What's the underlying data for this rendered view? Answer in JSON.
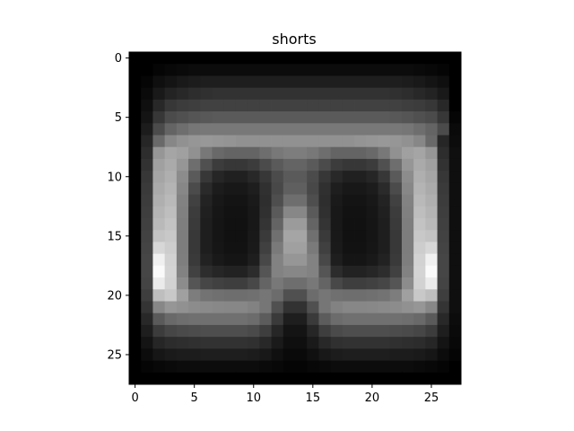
{
  "chart_data": {
    "type": "heatmap",
    "title": "shorts",
    "xlabel": "",
    "ylabel": "",
    "colormap": "gray",
    "grid": false,
    "rows": 28,
    "cols": 28,
    "xlim": [
      -0.5,
      27.5
    ],
    "ylim": [
      27.5,
      -0.5
    ],
    "x_ticks": [
      0,
      5,
      10,
      15,
      20,
      25
    ],
    "y_ticks": [
      0,
      5,
      10,
      15,
      20,
      25
    ],
    "values": [
      [
        0,
        0,
        0,
        0,
        0,
        0,
        0,
        0,
        0,
        0,
        0,
        0,
        0,
        0,
        0,
        0,
        0,
        0,
        0,
        0,
        0,
        0,
        0,
        0,
        0,
        0,
        0,
        0
      ],
      [
        0,
        0,
        5,
        8,
        10,
        12,
        12,
        12,
        12,
        12,
        12,
        12,
        12,
        12,
        12,
        12,
        12,
        12,
        12,
        12,
        12,
        12,
        12,
        12,
        10,
        8,
        5,
        0
      ],
      [
        0,
        5,
        15,
        20,
        25,
        28,
        30,
        30,
        30,
        30,
        30,
        30,
        30,
        30,
        30,
        30,
        30,
        30,
        30,
        30,
        30,
        30,
        30,
        28,
        25,
        20,
        15,
        0
      ],
      [
        0,
        10,
        25,
        35,
        40,
        45,
        48,
        50,
        50,
        50,
        50,
        50,
        50,
        50,
        50,
        50,
        50,
        50,
        50,
        50,
        50,
        50,
        48,
        45,
        40,
        35,
        25,
        0
      ],
      [
        0,
        15,
        40,
        55,
        60,
        62,
        65,
        65,
        65,
        65,
        65,
        65,
        65,
        65,
        65,
        65,
        65,
        65,
        65,
        65,
        65,
        65,
        65,
        62,
        60,
        55,
        40,
        0
      ],
      [
        0,
        20,
        55,
        75,
        80,
        85,
        88,
        90,
        90,
        90,
        90,
        90,
        90,
        90,
        90,
        90,
        90,
        90,
        90,
        90,
        90,
        90,
        88,
        85,
        80,
        75,
        55,
        5
      ],
      [
        0,
        28,
        75,
        100,
        110,
        118,
        120,
        120,
        120,
        120,
        120,
        120,
        120,
        120,
        120,
        120,
        120,
        120,
        120,
        120,
        120,
        120,
        120,
        118,
        110,
        100,
        75,
        10
      ],
      [
        0,
        38,
        105,
        135,
        145,
        150,
        152,
        150,
        148,
        145,
        145,
        145,
        145,
        145,
        145,
        145,
        145,
        145,
        145,
        148,
        150,
        152,
        150,
        145,
        135,
        105,
        38,
        12
      ],
      [
        0,
        45,
        150,
        165,
        160,
        145,
        120,
        105,
        100,
        100,
        100,
        110,
        120,
        125,
        125,
        120,
        110,
        100,
        100,
        100,
        105,
        120,
        145,
        160,
        165,
        150,
        45,
        15
      ],
      [
        0,
        50,
        160,
        170,
        150,
        110,
        80,
        60,
        55,
        55,
        60,
        75,
        90,
        100,
        100,
        90,
        75,
        60,
        55,
        55,
        60,
        80,
        110,
        150,
        170,
        160,
        50,
        15
      ],
      [
        0,
        55,
        165,
        175,
        140,
        90,
        55,
        38,
        32,
        32,
        40,
        55,
        75,
        90,
        90,
        75,
        55,
        40,
        32,
        32,
        38,
        55,
        90,
        140,
        175,
        165,
        55,
        15
      ],
      [
        0,
        58,
        170,
        180,
        135,
        75,
        42,
        28,
        24,
        24,
        30,
        48,
        72,
        95,
        95,
        72,
        48,
        30,
        24,
        24,
        28,
        42,
        75,
        135,
        180,
        170,
        58,
        15
      ],
      [
        0,
        60,
        175,
        185,
        130,
        65,
        35,
        24,
        20,
        20,
        26,
        46,
        78,
        110,
        110,
        78,
        46,
        26,
        20,
        20,
        24,
        35,
        65,
        130,
        185,
        175,
        60,
        15
      ],
      [
        0,
        62,
        180,
        190,
        128,
        60,
        32,
        22,
        18,
        18,
        24,
        48,
        90,
        135,
        135,
        90,
        48,
        24,
        18,
        18,
        22,
        32,
        60,
        128,
        190,
        180,
        62,
        15
      ],
      [
        0,
        64,
        185,
        195,
        126,
        58,
        30,
        21,
        17,
        17,
        24,
        52,
        100,
        155,
        155,
        100,
        52,
        24,
        17,
        17,
        21,
        30,
        58,
        126,
        195,
        185,
        64,
        15
      ],
      [
        0,
        66,
        195,
        200,
        125,
        56,
        30,
        21,
        17,
        17,
        25,
        58,
        112,
        165,
        165,
        112,
        58,
        25,
        17,
        17,
        21,
        30,
        56,
        125,
        200,
        195,
        66,
        15
      ],
      [
        0,
        68,
        215,
        205,
        125,
        56,
        30,
        22,
        18,
        18,
        26,
        64,
        122,
        160,
        160,
        122,
        64,
        26,
        18,
        18,
        22,
        30,
        56,
        125,
        205,
        215,
        68,
        15
      ],
      [
        0,
        70,
        240,
        210,
        126,
        58,
        34,
        25,
        21,
        21,
        30,
        72,
        130,
        150,
        150,
        130,
        72,
        30,
        21,
        21,
        25,
        34,
        58,
        126,
        210,
        240,
        70,
        15
      ],
      [
        0,
        70,
        250,
        212,
        130,
        65,
        45,
        38,
        34,
        34,
        44,
        85,
        130,
        135,
        135,
        130,
        85,
        44,
        34,
        34,
        38,
        45,
        65,
        130,
        212,
        250,
        70,
        15
      ],
      [
        0,
        68,
        235,
        210,
        140,
        85,
        70,
        65,
        62,
        62,
        72,
        100,
        120,
        110,
        110,
        120,
        100,
        72,
        62,
        62,
        65,
        70,
        85,
        140,
        210,
        235,
        68,
        15
      ],
      [
        0,
        62,
        190,
        200,
        160,
        125,
        115,
        112,
        110,
        110,
        112,
        118,
        108,
        80,
        80,
        108,
        118,
        112,
        110,
        110,
        112,
        115,
        125,
        160,
        200,
        190,
        62,
        15
      ],
      [
        0,
        52,
        135,
        150,
        145,
        140,
        138,
        136,
        135,
        135,
        130,
        118,
        80,
        50,
        50,
        80,
        118,
        130,
        135,
        135,
        136,
        138,
        140,
        145,
        150,
        135,
        52,
        15
      ],
      [
        0,
        40,
        90,
        105,
        110,
        112,
        112,
        112,
        112,
        112,
        108,
        92,
        58,
        30,
        30,
        58,
        92,
        108,
        112,
        112,
        112,
        112,
        112,
        110,
        105,
        90,
        40,
        12
      ],
      [
        0,
        30,
        60,
        70,
        74,
        76,
        78,
        78,
        78,
        78,
        74,
        62,
        38,
        20,
        20,
        38,
        62,
        74,
        78,
        78,
        78,
        78,
        76,
        74,
        70,
        60,
        30,
        10
      ],
      [
        0,
        20,
        38,
        44,
        46,
        48,
        50,
        50,
        50,
        50,
        48,
        40,
        26,
        15,
        15,
        26,
        40,
        48,
        50,
        50,
        50,
        50,
        48,
        46,
        44,
        38,
        20,
        8
      ],
      [
        0,
        12,
        22,
        26,
        28,
        28,
        30,
        30,
        30,
        30,
        28,
        24,
        16,
        10,
        10,
        16,
        24,
        28,
        30,
        30,
        30,
        30,
        28,
        28,
        26,
        22,
        12,
        5
      ],
      [
        0,
        5,
        8,
        10,
        12,
        12,
        12,
        12,
        12,
        12,
        12,
        10,
        8,
        5,
        5,
        8,
        10,
        12,
        12,
        12,
        12,
        12,
        12,
        12,
        10,
        8,
        5,
        0
      ],
      [
        0,
        0,
        0,
        0,
        0,
        0,
        0,
        0,
        0,
        0,
        0,
        0,
        0,
        0,
        0,
        0,
        0,
        0,
        0,
        0,
        0,
        0,
        0,
        0,
        0,
        0,
        0,
        0
      ]
    ]
  }
}
